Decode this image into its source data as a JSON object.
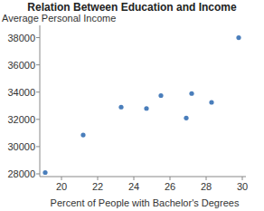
{
  "chart_data": {
    "type": "scatter",
    "title": "Relation Between Education and Income",
    "x_label": "Percent of People with Bachelor's Degrees",
    "y_label": "Average Personal Income",
    "x": [
      19.1,
      21.2,
      23.3,
      24.7,
      25.5,
      26.9,
      27.2,
      28.3,
      29.8
    ],
    "values": [
      28100,
      30850,
      32900,
      32800,
      33750,
      32100,
      33900,
      33250,
      38000
    ],
    "color": "#4a7ebb",
    "marker": "circle",
    "xlim": [
      18.8,
      30.2
    ],
    "xticks": [
      20,
      22,
      24,
      26,
      28,
      30
    ],
    "ylim": [
      27800,
      38900
    ],
    "yticks": [
      28000,
      30000,
      32000,
      34000,
      36000,
      38000
    ],
    "grid": false
  }
}
